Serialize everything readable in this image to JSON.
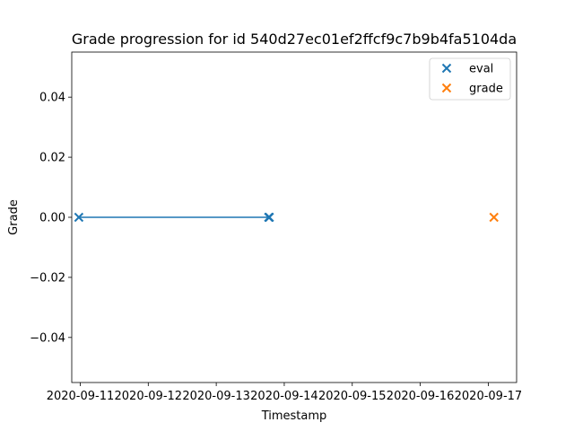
{
  "chart_data": {
    "type": "scatter",
    "title": "Grade progression for id 540d27ec01ef2ffcf9c7b9b4fa5104da",
    "xlabel": "Timestamp",
    "ylabel": "Grade",
    "x_ticks": [
      "2020-09-11",
      "2020-09-12",
      "2020-09-13",
      "2020-09-14",
      "2020-09-15",
      "2020-09-16",
      "2020-09-17"
    ],
    "xlim": [
      "2020-09-10 21:00",
      "2020-09-17 10:00"
    ],
    "ylim": [
      -0.055,
      0.055
    ],
    "y_ticks": [
      -0.04,
      -0.02,
      0.0,
      0.02,
      0.04
    ],
    "y_tick_labels": [
      "−0.04",
      "−0.02",
      "0.00",
      "0.02",
      "0.04"
    ],
    "grid": false,
    "legend_position": "upper right",
    "series": [
      {
        "name": "eval",
        "color": "#1f77b4",
        "marker": "x",
        "connect_line": true,
        "points": [
          {
            "x": "2020-09-10 23:30",
            "y": 0.0
          },
          {
            "x": "2020-09-13 18:30",
            "y": 0.0
          },
          {
            "x": "2020-09-13 18:45",
            "y": 0.0
          }
        ]
      },
      {
        "name": "grade",
        "color": "#ff7f0e",
        "marker": "x",
        "connect_line": false,
        "points": [
          {
            "x": "2020-09-17 02:00",
            "y": 0.0
          }
        ]
      }
    ]
  }
}
